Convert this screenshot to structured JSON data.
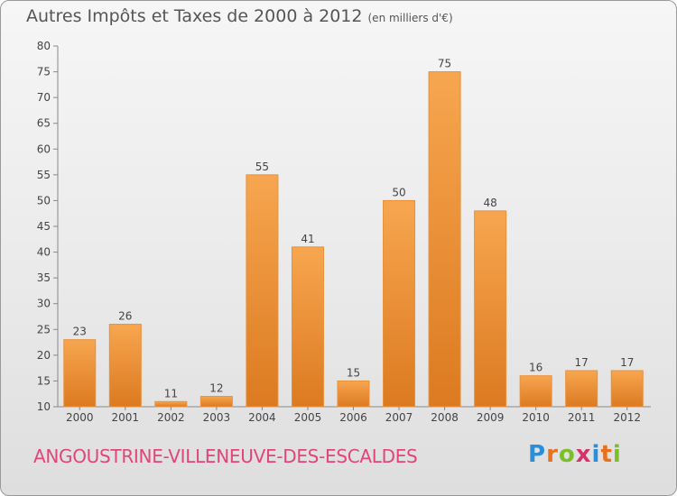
{
  "header": {
    "title": "Autres Impôts et Taxes de 2000 à 2012",
    "unit": "(en milliers d'€)"
  },
  "footer": {
    "commune": "ANGOUSTRINE-VILLENEUVE-DES-ESCALDES",
    "brand_letters": [
      "P",
      "r",
      "o",
      "x",
      "i",
      "t",
      "i"
    ],
    "brand_colors": [
      "#2a8fd8",
      "#e8701e",
      "#7bbf2a",
      "#d8326a",
      "#2a8fd8",
      "#e8701e",
      "#7bbf2a"
    ]
  },
  "chart_data": {
    "type": "bar",
    "title": "Autres Impôts et Taxes de 2000 à 2012",
    "subtitle": "(en milliers d'€)",
    "xlabel": "",
    "ylabel": "",
    "categories": [
      "2000",
      "2001",
      "2002",
      "2003",
      "2004",
      "2005",
      "2006",
      "2007",
      "2008",
      "2009",
      "2010",
      "2011",
      "2012"
    ],
    "values": [
      23,
      26,
      11,
      12,
      55,
      41,
      15,
      50,
      75,
      48,
      16,
      17,
      17
    ],
    "ylim": [
      10,
      80
    ],
    "yticks": [
      10,
      15,
      20,
      25,
      30,
      35,
      40,
      45,
      50,
      55,
      60,
      65,
      70,
      75,
      80
    ],
    "grid": false,
    "bar_color": "#f0963a",
    "bar_color_dark": "#d9741c"
  }
}
